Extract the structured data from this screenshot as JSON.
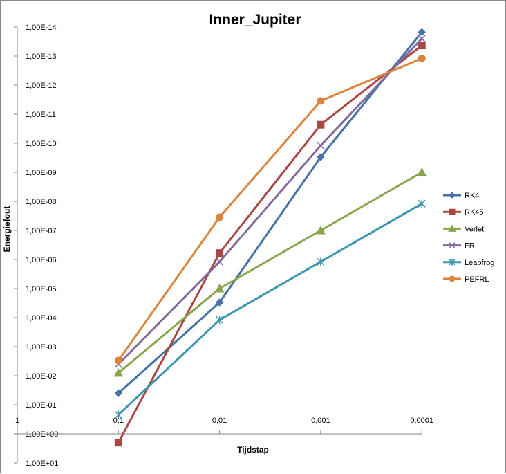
{
  "chart_data": {
    "type": "line",
    "title": "Inner_Jupiter",
    "xlabel": "Tijdstap",
    "ylabel": "Energiefout",
    "x_categories": [
      "0,1",
      "0,01",
      "0,001",
      "0,0001"
    ],
    "x_axis_origin_label": "1",
    "y_tick_labels": [
      "1,00E-14",
      "1,00E-13",
      "1,00E-12",
      "1,00E-11",
      "1,00E-10",
      "1,00E-09",
      "1,00E-08",
      "1,00E-07",
      "1,00E-06",
      "1,00E-05",
      "1,00E-04",
      "1,00E-03",
      "1,00E-02",
      "1,00E-01",
      "1,00E+00",
      "1,00E+01"
    ],
    "y_scale": "log (reversed: 1E-14 at top, 1E+01 at bottom)",
    "y_range": [
      "1,00E-14",
      "1,00E+01"
    ],
    "legend_position": "right",
    "grid": false,
    "series": [
      {
        "name": "RK4",
        "color": "#4572A7",
        "marker": "diamond",
        "values": [
          0.04,
          3e-05,
          3e-10,
          1.5e-14
        ]
      },
      {
        "name": "RK45",
        "color": "#AA4643",
        "marker": "square",
        "values": [
          2.0,
          6e-07,
          2.3e-11,
          4.3e-14
        ]
      },
      {
        "name": "Verlet",
        "color": "#89A54E",
        "marker": "triangle",
        "values": [
          0.008,
          1e-05,
          1e-07,
          1e-09
        ]
      },
      {
        "name": "FR",
        "color": "#80699B",
        "marker": "x",
        "values": [
          0.004,
          1.2e-06,
          1.2e-10,
          2.5e-14
        ]
      },
      {
        "name": "Leapfrog",
        "color": "#3D96AE",
        "marker": "asterisk",
        "values": [
          0.22,
          0.00012,
          1.2e-06,
          1.2e-08
        ]
      },
      {
        "name": "PEFRL",
        "color": "#DB843D",
        "marker": "circle",
        "values": [
          0.003,
          3.5e-08,
          3.5e-12,
          1.2e-13
        ]
      }
    ]
  }
}
